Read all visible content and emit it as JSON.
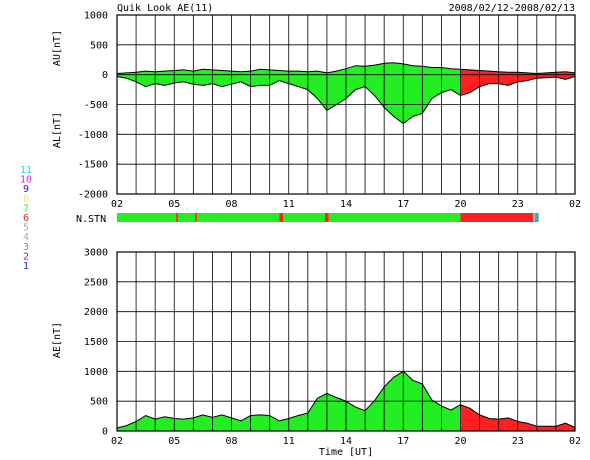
{
  "header": {
    "title": "Quik Look AE(11)",
    "date_range": "2008/02/12-2008/02/13"
  },
  "colors": {
    "stn_full": "#22ee22",
    "stn_6": "#ff2020",
    "stn_5": "#b0b0b0",
    "stn_4": "#30b0c0",
    "frame": "#000000"
  },
  "station_legend": [
    {
      "label": "11",
      "color": "#22dddd"
    },
    {
      "label": "10",
      "color": "#ee22ee"
    },
    {
      "label": "9",
      "color": "#2222cc"
    },
    {
      "label": "8",
      "color": "#eeee44"
    },
    {
      "label": "7",
      "color": "#44ee44"
    },
    {
      "label": "6",
      "color": "#ee2222"
    },
    {
      "label": "5",
      "color": "#aaaaaa"
    },
    {
      "label": "4",
      "color": "#aaaaaa"
    },
    {
      "label": "3",
      "color": "#33aaaa"
    },
    {
      "label": "2",
      "color": "#aa2277"
    },
    {
      "label": "1",
      "color": "#2222cc"
    }
  ],
  "chart_data": [
    {
      "type": "area",
      "panel": "AU/AL",
      "ylabel_upper": "AU[nT]",
      "ylabel_lower": "AL[nT]",
      "ylim": [
        -2000,
        1000
      ],
      "yticks": [
        "1000",
        "500",
        "0",
        "-500",
        "-1000",
        "-1500",
        "-2000"
      ],
      "xlim_hours": [
        0,
        24
      ],
      "xticks": [
        "02",
        "05",
        "08",
        "11",
        "14",
        "17",
        "20",
        "23",
        "02"
      ],
      "grid": true,
      "x_hours": [
        0,
        0.5,
        1,
        1.5,
        2,
        2.5,
        3,
        3.5,
        4,
        4.5,
        5,
        5.5,
        6,
        6.5,
        7,
        7.5,
        8,
        8.5,
        9,
        9.5,
        10,
        10.5,
        11,
        11.5,
        12,
        12.5,
        13,
        13.5,
        14,
        14.5,
        15,
        15.5,
        16,
        16.5,
        17,
        17.5,
        18,
        18.5,
        19,
        19.5,
        20,
        20.5,
        21,
        21.5,
        22,
        22.5,
        23,
        23.5,
        24
      ],
      "series": [
        {
          "values": [
            20,
            30,
            40,
            60,
            50,
            60,
            70,
            80,
            60,
            90,
            80,
            70,
            60,
            50,
            60,
            90,
            80,
            70,
            60,
            60,
            50,
            60,
            30,
            60,
            100,
            150,
            140,
            160,
            190,
            200,
            180,
            150,
            140,
            120,
            120,
            100,
            90,
            80,
            70,
            60,
            50,
            40,
            40,
            30,
            20,
            30,
            40,
            50,
            30
          ]
        },
        {
          "values": [
            -30,
            -60,
            -120,
            -200,
            -150,
            -180,
            -140,
            -120,
            -160,
            -180,
            -150,
            -200,
            -160,
            -120,
            -200,
            -180,
            -180,
            -100,
            -150,
            -200,
            -250,
            -400,
            -600,
            -500,
            -400,
            -250,
            -200,
            -350,
            -550,
            -700,
            -820,
            -700,
            -650,
            -400,
            -300,
            -250,
            -350,
            -300,
            -200,
            -150,
            -150,
            -180,
            -120,
            -100,
            -60,
            -50,
            -40,
            -80,
            -30
          ]
        }
      ]
    },
    {
      "type": "area",
      "panel": "AE",
      "ylabel": "AE[nT]",
      "ylim": [
        0,
        3000
      ],
      "yticks": [
        "3000",
        "2500",
        "2000",
        "1500",
        "1000",
        "500",
        "0"
      ],
      "xlim_hours": [
        0,
        24
      ],
      "xticks": [
        "02",
        "05",
        "08",
        "11",
        "14",
        "17",
        "20",
        "23",
        "02"
      ],
      "xlabel": "Time [UT]",
      "grid": true,
      "x_hours": [
        0,
        0.5,
        1,
        1.5,
        2,
        2.5,
        3,
        3.5,
        4,
        4.5,
        5,
        5.5,
        6,
        6.5,
        7,
        7.5,
        8,
        8.5,
        9,
        9.5,
        10,
        10.5,
        11,
        11.5,
        12,
        12.5,
        13,
        13.5,
        14,
        14.5,
        15,
        15.5,
        16,
        16.5,
        17,
        17.5,
        18,
        18.5,
        19,
        19.5,
        20,
        20.5,
        21,
        21.5,
        22,
        22.5,
        23,
        23.5,
        24
      ],
      "series": [
        {
          "values": [
            50,
            90,
            160,
            260,
            200,
            240,
            210,
            200,
            220,
            270,
            230,
            270,
            220,
            170,
            260,
            270,
            260,
            170,
            210,
            260,
            300,
            550,
            630,
            560,
            500,
            400,
            340,
            510,
            740,
            900,
            1000,
            850,
            790,
            520,
            420,
            350,
            440,
            380,
            270,
            210,
            200,
            220,
            160,
            130,
            80,
            80,
            80,
            130,
            60
          ]
        }
      ]
    },
    {
      "type": "heatmap",
      "panel": "station-count",
      "label": "N.STN",
      "xlim_hours": [
        0,
        24
      ],
      "segments": [
        {
          "start": 0,
          "end": 3.1,
          "count": 7
        },
        {
          "start": 3.1,
          "end": 3.2,
          "count": 6
        },
        {
          "start": 3.2,
          "end": 4.1,
          "count": 7
        },
        {
          "start": 4.1,
          "end": 4.2,
          "count": 6
        },
        {
          "start": 4.2,
          "end": 8.5,
          "count": 7
        },
        {
          "start": 8.5,
          "end": 8.7,
          "count": 6
        },
        {
          "start": 8.7,
          "end": 10.9,
          "count": 7
        },
        {
          "start": 10.9,
          "end": 11.1,
          "count": 6
        },
        {
          "start": 11.1,
          "end": 18.0,
          "count": 7
        },
        {
          "start": 18.0,
          "end": 21.8,
          "count": 6
        },
        {
          "start": 21.8,
          "end": 21.9,
          "count": 5
        },
        {
          "start": 21.9,
          "end": 22.1,
          "count": 4
        }
      ]
    }
  ]
}
